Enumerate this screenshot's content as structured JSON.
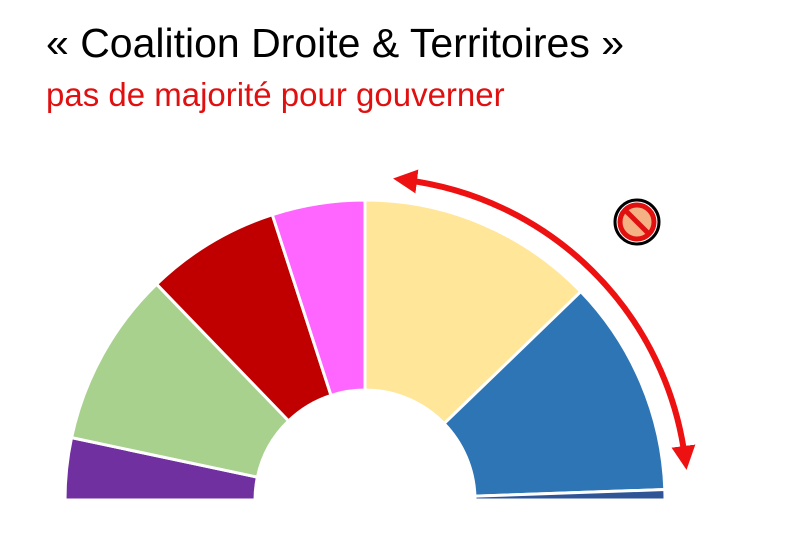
{
  "chart_data": {
    "type": "hemicycle",
    "title": "« Coalition Droite & Territoires »",
    "subtitle": "pas de majorité pour gouverner",
    "values": [
      12,
      34,
      26,
      18,
      46,
      42,
      2
    ],
    "colors": [
      "#7030a0",
      "#a9d18e",
      "#c00000",
      "#ff66ff",
      "#ffe699",
      "#2e75b6",
      "#2f5597"
    ]
  }
}
